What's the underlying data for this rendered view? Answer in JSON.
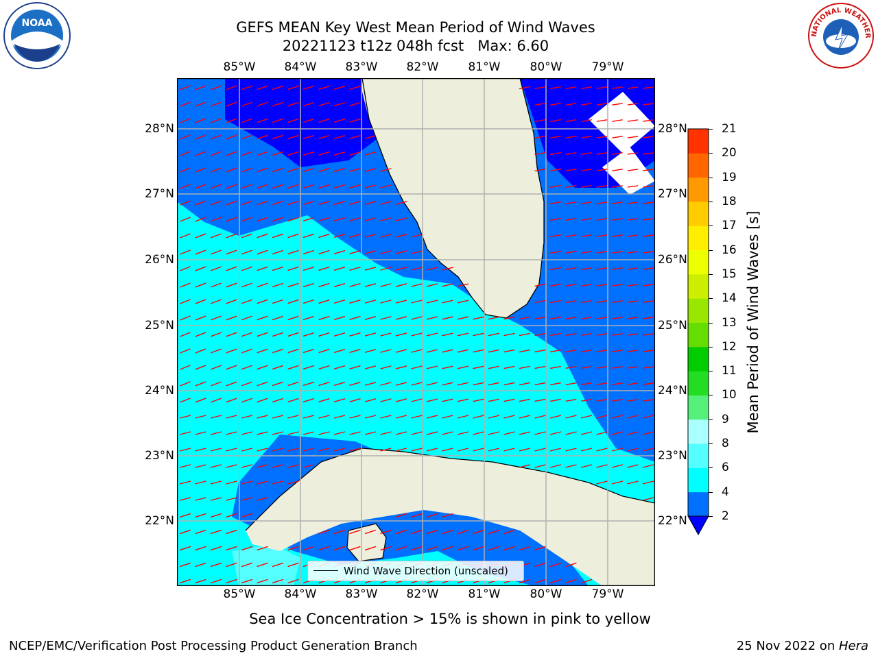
{
  "title": {
    "line1": "GEFS MEAN Key West Mean Period of Wind Waves",
    "line2": "20221123 t12z 048h fcst   Max: 6.60"
  },
  "axes": {
    "lon_ticks": [
      "85°W",
      "84°W",
      "83°W",
      "82°W",
      "81°W",
      "80°W",
      "79°W"
    ],
    "lat_ticks": [
      "28°N",
      "27°N",
      "26°N",
      "25°N",
      "24°N",
      "23°N",
      "22°N"
    ]
  },
  "colorbar": {
    "label": "Mean Period of Wind Waves [s]",
    "ticks": [
      "2",
      "4",
      "6",
      "8",
      "9",
      "10",
      "11",
      "12",
      "13",
      "14",
      "15",
      "16",
      "17",
      "18",
      "19",
      "20",
      "21"
    ],
    "colors": [
      "#0070ff",
      "#00ffff",
      "#55ffff",
      "#aaffff",
      "#55f07a",
      "#22dd22",
      "#00cc00",
      "#66dd00",
      "#99e600",
      "#ccee00",
      "#eeff00",
      "#ffee00",
      "#ffcc00",
      "#ff9900",
      "#ff6600",
      "#ff3300"
    ],
    "extend_color": "#0000ff"
  },
  "legend": {
    "label": "Wind Wave Direction (unscaled)"
  },
  "subtitle": "Sea Ice Concentration > 15% is shown in pink to yellow",
  "footer": {
    "left": "NCEP/EMC/Verification Post Processing Product Generation Branch",
    "right_prefix": "25 Nov 2022 on ",
    "right_host": "Hera"
  },
  "logos": {
    "left": "NOAA",
    "right": "NATIONAL WEATHER SERVICE"
  },
  "colors": {
    "land": "#eeeedd",
    "band_2_4": "#0070ff",
    "band_4_6": "#00ffff",
    "band_6_8": "#55ffff",
    "below_2": "#0000ff",
    "arrow": "#ff0000"
  }
}
